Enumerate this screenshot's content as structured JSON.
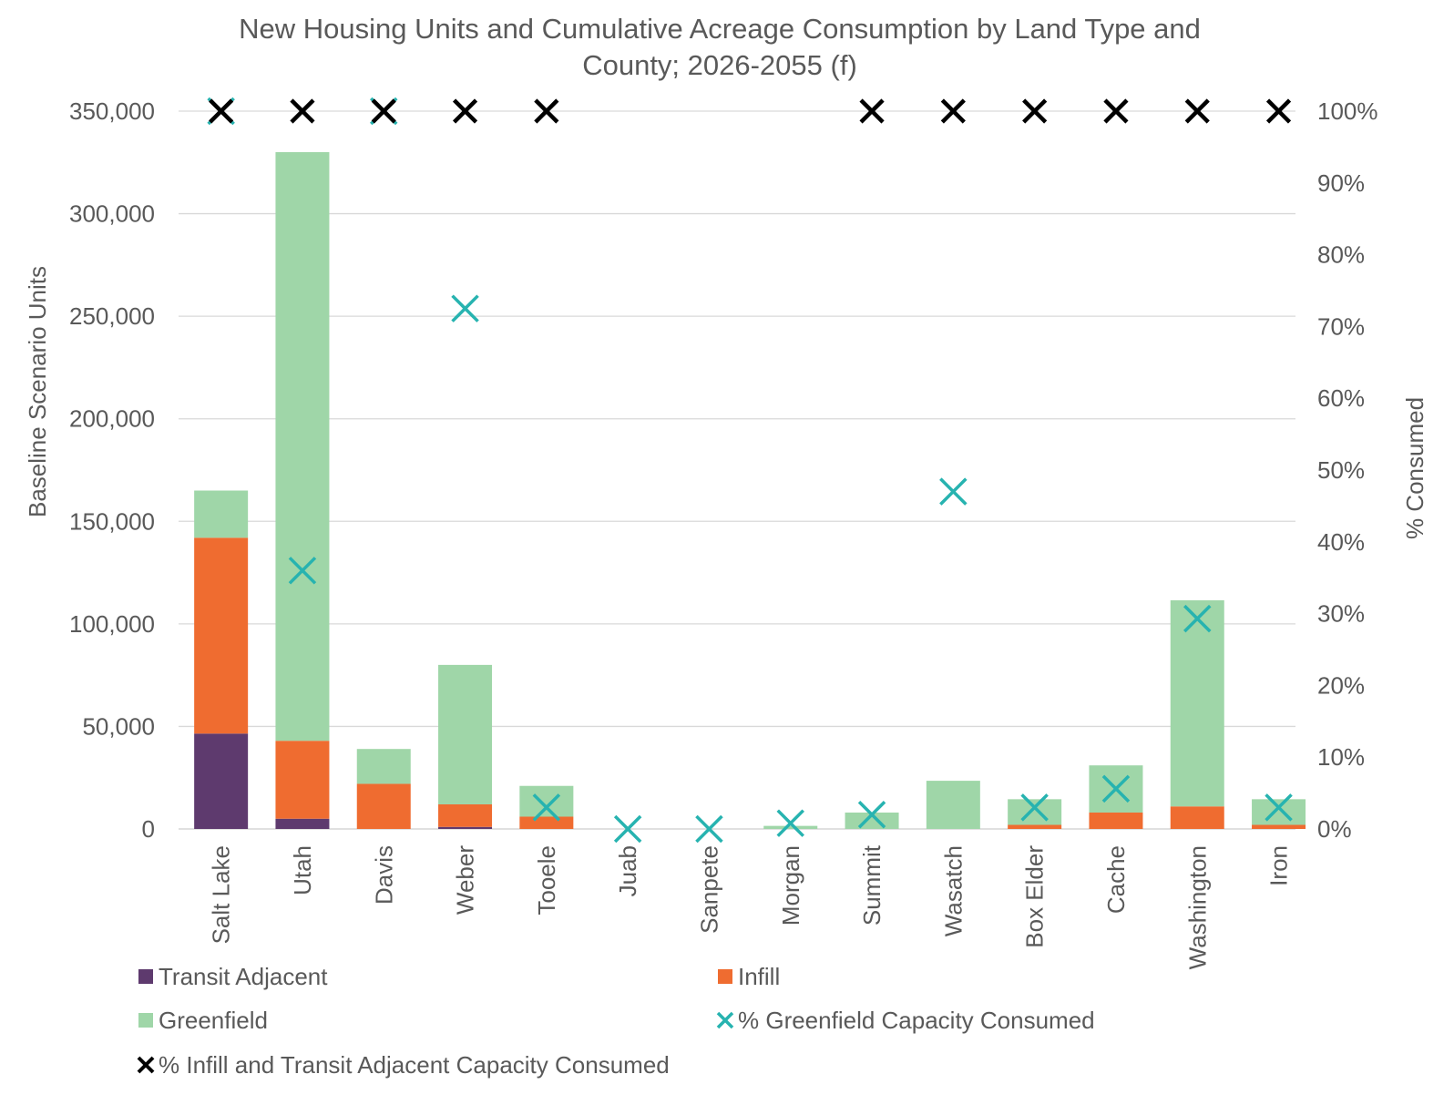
{
  "chart_data": {
    "type": "bar",
    "stacked": true,
    "title": "New Housing Units and Cumulative Acreage Consumption by Land Type and County; 2026-2055 (f)",
    "title_lines": [
      "New Housing Units and Cumulative Acreage Consumption by Land Type and",
      "County; 2026-2055 (f)"
    ],
    "ylabel": "Baseline Scenario Units",
    "y2label": "% Consumed",
    "ylim": [
      0,
      350000
    ],
    "y2lim": [
      0,
      100
    ],
    "y_ticks": [
      0,
      50000,
      100000,
      150000,
      200000,
      250000,
      300000,
      350000
    ],
    "y_tick_labels": [
      "0",
      "50,000",
      "100,000",
      "150,000",
      "200,000",
      "250,000",
      "300,000",
      "350,000"
    ],
    "y2_ticks": [
      0,
      10,
      20,
      30,
      40,
      50,
      60,
      70,
      80,
      90,
      100
    ],
    "y2_tick_labels": [
      "0%",
      "10%",
      "20%",
      "30%",
      "40%",
      "50%",
      "60%",
      "70%",
      "80%",
      "90%",
      "100%"
    ],
    "categories": [
      "Salt Lake",
      "Utah",
      "Davis",
      "Weber",
      "Tooele",
      "Juab",
      "Sanpete",
      "Morgan",
      "Summit",
      "Wasatch",
      "Box Elder",
      "Cache",
      "Washington",
      "Iron"
    ],
    "series": [
      {
        "name": "Transit Adjacent",
        "kind": "bar",
        "color": "#5e3a6e",
        "values": [
          46500,
          5000,
          0,
          1000,
          0,
          0,
          0,
          0,
          0,
          0,
          0,
          0,
          0,
          0
        ]
      },
      {
        "name": "Infill",
        "kind": "bar",
        "color": "#ef6c30",
        "values": [
          95500,
          38000,
          22000,
          11000,
          6000,
          0,
          0,
          0,
          0,
          0,
          2000,
          8000,
          11000,
          2000
        ]
      },
      {
        "name": "Greenfield",
        "kind": "bar",
        "color": "#9fd6a8",
        "values": [
          23000,
          287000,
          17000,
          68000,
          15000,
          0,
          0,
          1500,
          8000,
          23500,
          12500,
          23000,
          100500,
          12500
        ]
      },
      {
        "name": "% Greenfield Capacity Consumed",
        "kind": "marker",
        "axis": "y2",
        "color": "#27b3b0",
        "values": [
          100,
          36,
          100,
          72.5,
          3,
          0,
          0,
          0.8,
          2,
          47,
          3,
          5.6,
          29.3,
          3
        ]
      },
      {
        "name": "% Infill and Transit Adjacent Capacity Consumed",
        "kind": "marker",
        "axis": "y2",
        "color": "#000000",
        "values": [
          100,
          100,
          100,
          100,
          100,
          null,
          null,
          null,
          100,
          100,
          100,
          100,
          100,
          100
        ]
      }
    ],
    "legend": [
      {
        "label": "Transit Adjacent",
        "symbol": "square",
        "color": "#5e3a6e"
      },
      {
        "label": "Infill",
        "symbol": "square",
        "color": "#ef6c30"
      },
      {
        "label": "Greenfield",
        "symbol": "square",
        "color": "#9fd6a8"
      },
      {
        "label": "% Greenfield Capacity Consumed",
        "symbol": "x",
        "color": "#27b3b0"
      },
      {
        "label": "% Infill and Transit Adjacent Capacity Consumed",
        "symbol": "x",
        "color": "#000000"
      }
    ],
    "legend_position": "bottom"
  }
}
